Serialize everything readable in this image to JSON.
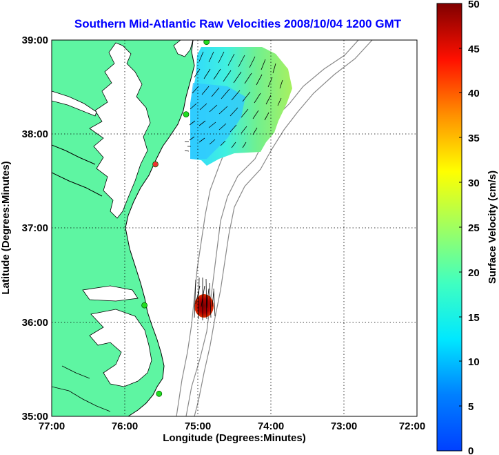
{
  "title": "Southern Mid-Atlantic Raw Velocities 2008/10/04 1200 GMT",
  "xlabel": "Longitude (Degrees:Minutes)",
  "ylabel": "Latitude (Degrees:Minutes)",
  "x_ticks": [
    "77:00",
    "76:00",
    "75:00",
    "74:00",
    "73:00",
    "72:00"
  ],
  "y_ticks": [
    "39:00",
    "38:00",
    "37:00",
    "36:00",
    "35:00"
  ],
  "colorbar": {
    "label": "Surface Velocity (cm/s)",
    "ticks": [
      "0",
      "5",
      "10",
      "15",
      "20",
      "25",
      "30",
      "35",
      "40",
      "45",
      "50"
    ],
    "range": [
      0,
      50
    ]
  },
  "colors": {
    "land": "#5ef5a2",
    "ocean": "#ffffff",
    "title": "#0000ff",
    "coastline": "#000000",
    "bathymetry": "#888888",
    "grid": "#000000",
    "station": "#22dd22",
    "station_alert": "#ee3333"
  },
  "map_extent": {
    "lon": [
      -77,
      -72
    ],
    "lat": [
      35,
      39
    ]
  },
  "stations": [
    {
      "lon": -74.88,
      "lat": 38.98,
      "status": "ok"
    },
    {
      "lon": -75.16,
      "lat": 38.21,
      "status": "ok"
    },
    {
      "lon": -75.58,
      "lat": 37.68,
      "status": "alert"
    },
    {
      "lon": -75.73,
      "lat": 36.18,
      "status": "ok"
    },
    {
      "lon": -75.53,
      "lat": 35.24,
      "status": "ok"
    }
  ]
}
